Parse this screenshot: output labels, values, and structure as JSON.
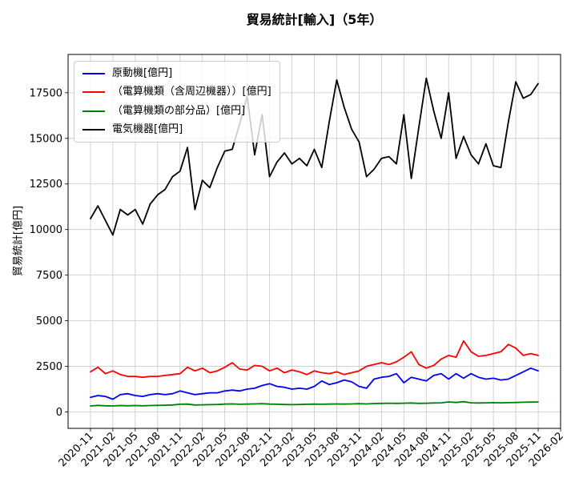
{
  "chart_data": {
    "type": "line",
    "title": "貿易統計[輸入]（5年）",
    "ylabel": "貿易統計[億円]",
    "xlabel": "",
    "grid": true,
    "grid_color": "#c8c8c8",
    "legend_position": "upper left",
    "x_interval": "monthly",
    "x_start_label": "2020-11",
    "x_tick_labels": [
      "2020-11",
      "2021-02",
      "2021-05",
      "2021-08",
      "2021-11",
      "2022-02",
      "2022-05",
      "2022-08",
      "2022-11",
      "2023-02",
      "2023-05",
      "2023-08",
      "2023-11",
      "2024-02",
      "2024-05",
      "2024-08",
      "2024-11",
      "2025-02",
      "2025-05",
      "2025-08",
      "2025-11",
      "2026-02"
    ],
    "x_tick_months": [
      0,
      3,
      6,
      9,
      12,
      15,
      18,
      21,
      24,
      27,
      30,
      33,
      36,
      39,
      42,
      45,
      48,
      51,
      54,
      57,
      60,
      63
    ],
    "xlim_months": [
      -3,
      63
    ],
    "y_ticks": [
      0,
      2500,
      5000,
      7500,
      10000,
      12500,
      15000,
      17500
    ],
    "ylim": [
      -900,
      19600
    ],
    "series": [
      {
        "name": "原動機[億円]",
        "color": "#0000ff",
        "values": [
          800,
          900,
          850,
          700,
          950,
          1000,
          900,
          850,
          950,
          1000,
          950,
          1000,
          1150,
          1050,
          950,
          1000,
          1050,
          1050,
          1150,
          1200,
          1150,
          1250,
          1300,
          1450,
          1550,
          1400,
          1350,
          1250,
          1300,
          1250,
          1400,
          1700,
          1500,
          1600,
          1750,
          1650,
          1400,
          1300,
          1800,
          1900,
          1950,
          2100,
          1600,
          1900,
          1800,
          1700,
          2000,
          2100,
          1800,
          2100,
          1850,
          2100,
          1900,
          1800,
          1850,
          1750,
          1800,
          2000,
          2200,
          2400,
          2250
        ]
      },
      {
        "name": "（電算機類（含周辺機器））[億円]",
        "color": "#ff0000",
        "values": [
          2200,
          2450,
          2100,
          2250,
          2050,
          1950,
          1950,
          1900,
          1950,
          1950,
          2000,
          2050,
          2100,
          2450,
          2250,
          2400,
          2150,
          2250,
          2450,
          2700,
          2350,
          2300,
          2550,
          2500,
          2250,
          2400,
          2150,
          2300,
          2200,
          2050,
          2250,
          2150,
          2100,
          2200,
          2050,
          2150,
          2250,
          2500,
          2600,
          2700,
          2600,
          2750,
          3000,
          3300,
          2600,
          2400,
          2550,
          2900,
          3100,
          3000,
          3900,
          3300,
          3050,
          3100,
          3200,
          3300,
          3700,
          3500,
          3100,
          3200,
          3100
        ]
      },
      {
        "name": "（電算機類の部分品）[億円]",
        "color": "#008000",
        "values": [
          330,
          360,
          340,
          330,
          350,
          340,
          350,
          340,
          350,
          360,
          370,
          380,
          420,
          430,
          380,
          390,
          400,
          410,
          430,
          440,
          420,
          430,
          440,
          450,
          430,
          420,
          410,
          400,
          410,
          420,
          430,
          420,
          430,
          440,
          430,
          440,
          450,
          440,
          460,
          470,
          480,
          470,
          480,
          490,
          470,
          480,
          490,
          500,
          550,
          520,
          560,
          500,
          490,
          500,
          510,
          500,
          510,
          520,
          530,
          540,
          550
        ]
      },
      {
        "name": "電気機器[億円]",
        "color": "#000000",
        "values": [
          10600,
          11300,
          10500,
          9700,
          11100,
          10800,
          11100,
          10300,
          11400,
          11900,
          12200,
          12900,
          13200,
          14500,
          11100,
          12700,
          12300,
          13400,
          14300,
          14400,
          15800,
          17300,
          14100,
          16300,
          12900,
          13700,
          14200,
          13600,
          13900,
          13500,
          14400,
          13400,
          15900,
          18200,
          16700,
          15500,
          14800,
          12900,
          13300,
          13900,
          14000,
          13600,
          16300,
          12800,
          15600,
          18300,
          16500,
          15000,
          17500,
          13900,
          15100,
          14100,
          13600,
          14700,
          13500,
          13400,
          15900,
          18100,
          17200,
          17400,
          18000
        ]
      }
    ]
  }
}
